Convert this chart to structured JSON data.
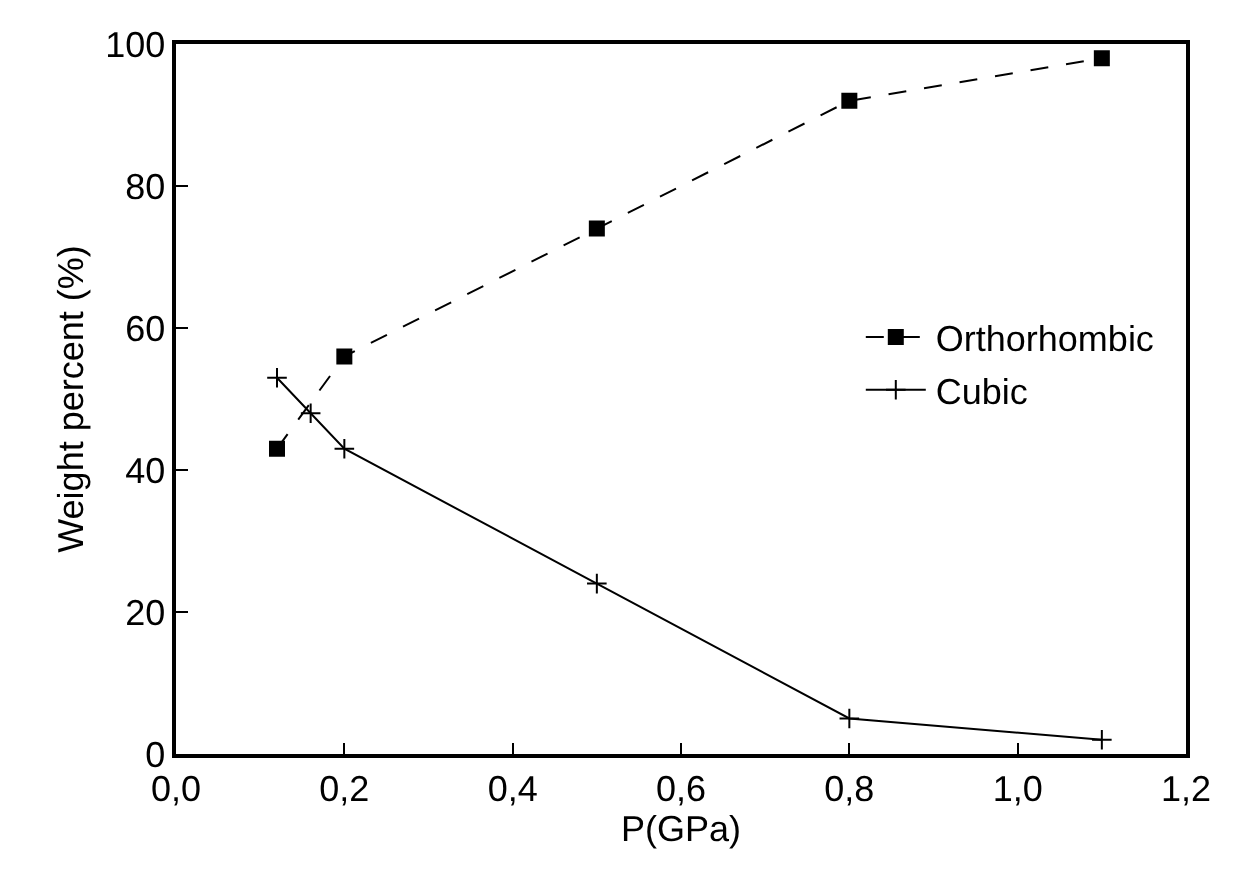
{
  "chart_data": {
    "type": "line",
    "xlabel": "P(GPa)",
    "ylabel": "Weight percent (%)",
    "xlim": [
      0,
      1.2
    ],
    "xticks": [
      {
        "value": 0,
        "label": "0,0"
      },
      {
        "value": 0.2,
        "label": "0,2"
      },
      {
        "value": 0.4,
        "label": "0,4"
      },
      {
        "value": 0.6,
        "label": "0,6"
      },
      {
        "value": 0.8,
        "label": "0,8"
      },
      {
        "value": 1.0,
        "label": "1,0"
      },
      {
        "value": 1.2,
        "label": "1,2"
      }
    ],
    "ylim": [
      0,
      100
    ],
    "yticks": [
      0,
      20,
      40,
      60,
      80,
      100
    ],
    "legend": "right",
    "series": [
      {
        "name": "Orthorhombic",
        "color": "#000000",
        "marker": "square",
        "line_style": "dashed",
        "x": [
          0.12,
          0.2,
          0.5,
          0.8,
          1.1
        ],
        "values": [
          43,
          56,
          74,
          92,
          98
        ]
      },
      {
        "name": "Cubic",
        "color": "#000000",
        "marker": "cross",
        "line_style": "solid",
        "x": [
          0.12,
          0.16,
          0.2,
          0.5,
          0.8,
          1.1
        ],
        "values": [
          53,
          48,
          43,
          24,
          5,
          2
        ]
      }
    ]
  }
}
